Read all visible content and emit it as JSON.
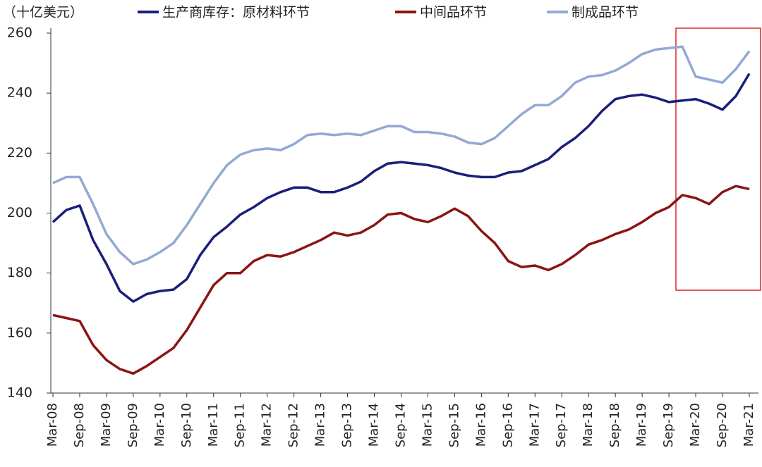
{
  "chart_data": {
    "type": "line",
    "unit_label": "（十亿美元）",
    "categories": [
      "Mar-08",
      null,
      "Sep-08",
      null,
      "Mar-09",
      null,
      "Sep-09",
      null,
      "Mar-10",
      null,
      "Sep-10",
      null,
      "Mar-11",
      null,
      "Sep-11",
      null,
      "Mar-12",
      null,
      "Sep-12",
      null,
      "Mar-13",
      null,
      "Sep-13",
      null,
      "Mar-14",
      null,
      "Sep-14",
      null,
      "Mar-15",
      null,
      "Sep-15",
      null,
      "Mar-16",
      null,
      "Sep-16",
      null,
      "Mar-17",
      null,
      "Sep-17",
      null,
      "Mar-18",
      null,
      "Sep-18",
      null,
      "Mar-19",
      null,
      "Sep-19",
      null,
      "Mar-20",
      null,
      "Sep-20",
      null,
      "Mar-21"
    ],
    "series": [
      {
        "name": "生产商库存：原材料环节",
        "color": "#1a1f7a",
        "values": [
          197,
          201,
          202.5,
          191,
          183,
          174,
          170.5,
          173,
          174,
          174.5,
          178,
          186,
          192,
          195.5,
          199.5,
          202,
          205,
          207,
          208.5,
          208.5,
          207,
          207,
          208.5,
          210.5,
          214,
          216.5,
          217,
          216.5,
          216,
          215,
          213.5,
          212.5,
          212,
          212,
          213.5,
          214,
          216,
          218,
          222,
          225,
          229,
          234,
          238,
          239,
          239.5,
          238.5,
          237,
          237.5,
          238,
          236.5,
          234.5,
          239,
          246.5
        ]
      },
      {
        "name": "中间品环节",
        "color": "#8b1414",
        "values": [
          166,
          165,
          164,
          156,
          151,
          148,
          146.5,
          149,
          152,
          155,
          161,
          168.5,
          176,
          180,
          180,
          184,
          186,
          185.5,
          187,
          189,
          191,
          193.5,
          192.5,
          193.5,
          196,
          199.5,
          200,
          198,
          197,
          199,
          201.5,
          199,
          194,
          190,
          184,
          182,
          182.5,
          181,
          183,
          186,
          189.5,
          191,
          193,
          194.5,
          197,
          200,
          202,
          206,
          205,
          203,
          207,
          209,
          208
        ]
      },
      {
        "name": "制成品环节",
        "color": "#93a9d4",
        "values": [
          210,
          212,
          212,
          203,
          193,
          187,
          183,
          184.5,
          187,
          190,
          196,
          203,
          210,
          216,
          219.5,
          221,
          221.5,
          221,
          223,
          226,
          226.5,
          226,
          226.5,
          226,
          227.5,
          229,
          229,
          227,
          227,
          226.5,
          225.5,
          223.5,
          223,
          225,
          229,
          233,
          236,
          236,
          239,
          243.5,
          245.5,
          246,
          247.5,
          250,
          253,
          254.5,
          255,
          255.5,
          245.5,
          244.5,
          243.5,
          248,
          254
        ]
      }
    ],
    "ylim": [
      140,
      260
    ],
    "yticks": [
      140,
      160,
      180,
      200,
      220,
      240,
      260
    ]
  }
}
